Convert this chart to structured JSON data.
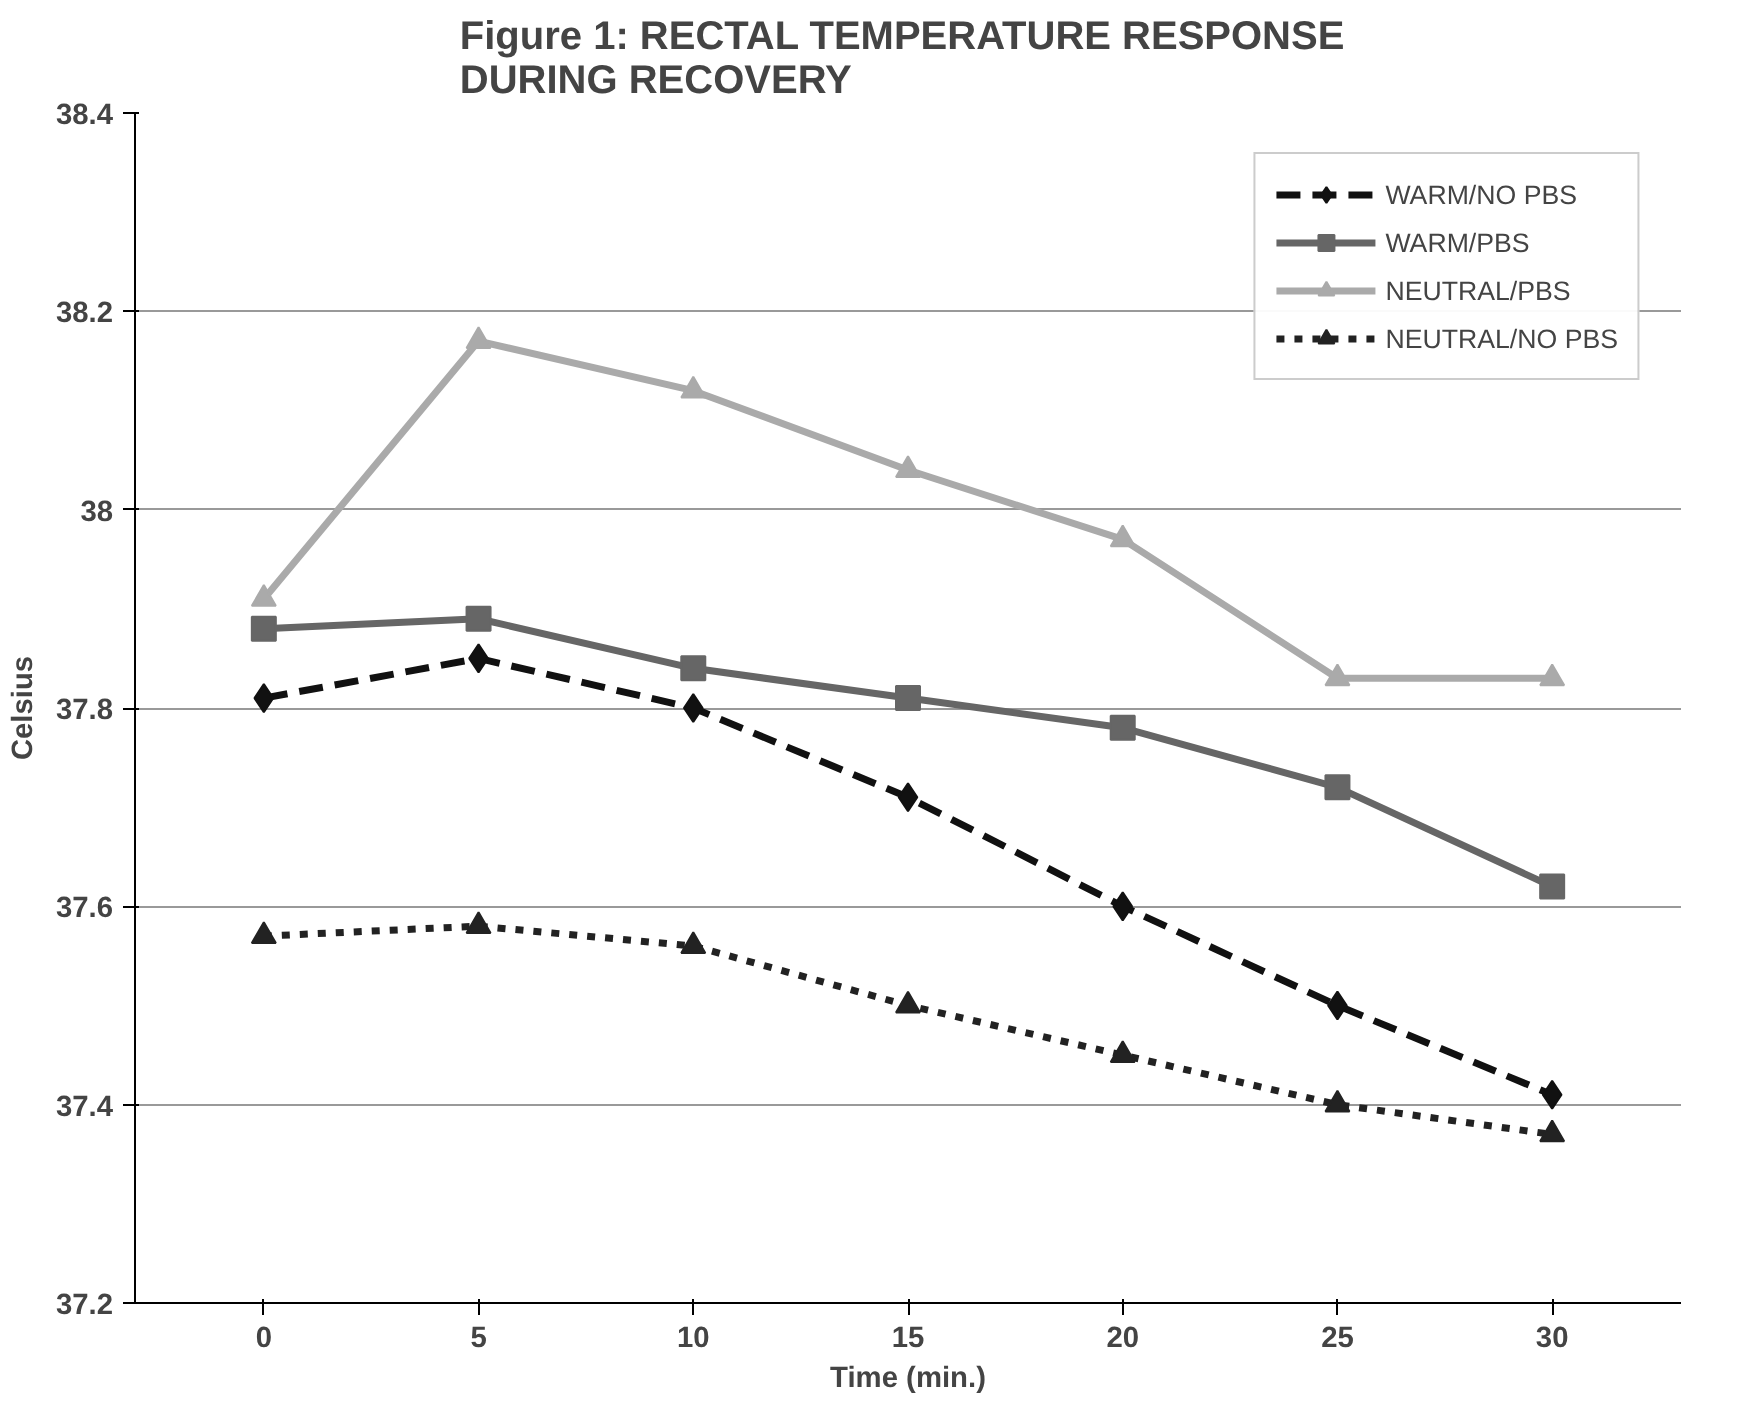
{
  "chart_data": {
    "type": "line",
    "title": "Figure 1:  RECTAL TEMPERATURE RESPONSE\nDURING RECOVERY",
    "xlabel": "Time (min.)",
    "ylabel": "Celsius",
    "categories": [
      "0",
      "5",
      "10",
      "15",
      "20",
      "25",
      "30"
    ],
    "ylim": [
      37.2,
      38.4
    ],
    "yticks": [
      37.2,
      37.4,
      37.6,
      37.8,
      38,
      38.2,
      38.4
    ],
    "grid": "y",
    "legend": "top right",
    "series": [
      {
        "name": "WARM/NO PBS",
        "color": "#111111",
        "marker": "diamond",
        "line_style": "dashed",
        "values": [
          37.81,
          37.85,
          37.8,
          37.71,
          37.6,
          37.5,
          37.41
        ]
      },
      {
        "name": "WARM/PBS",
        "color": "#666666",
        "marker": "square",
        "line_style": "solid",
        "values": [
          37.88,
          37.89,
          37.84,
          37.81,
          37.78,
          37.72,
          37.62
        ]
      },
      {
        "name": "NEUTRAL/PBS",
        "color": "#aaaaaa",
        "marker": "triangle",
        "line_style": "solid",
        "values": [
          37.91,
          38.17,
          38.12,
          38.04,
          37.97,
          37.83,
          37.83
        ]
      },
      {
        "name": "NEUTRAL/NO PBS",
        "color": "#222222",
        "marker": "triangle",
        "line_style": "dotted",
        "values": [
          37.57,
          37.58,
          37.56,
          37.5,
          37.45,
          37.4,
          37.37
        ]
      }
    ]
  }
}
